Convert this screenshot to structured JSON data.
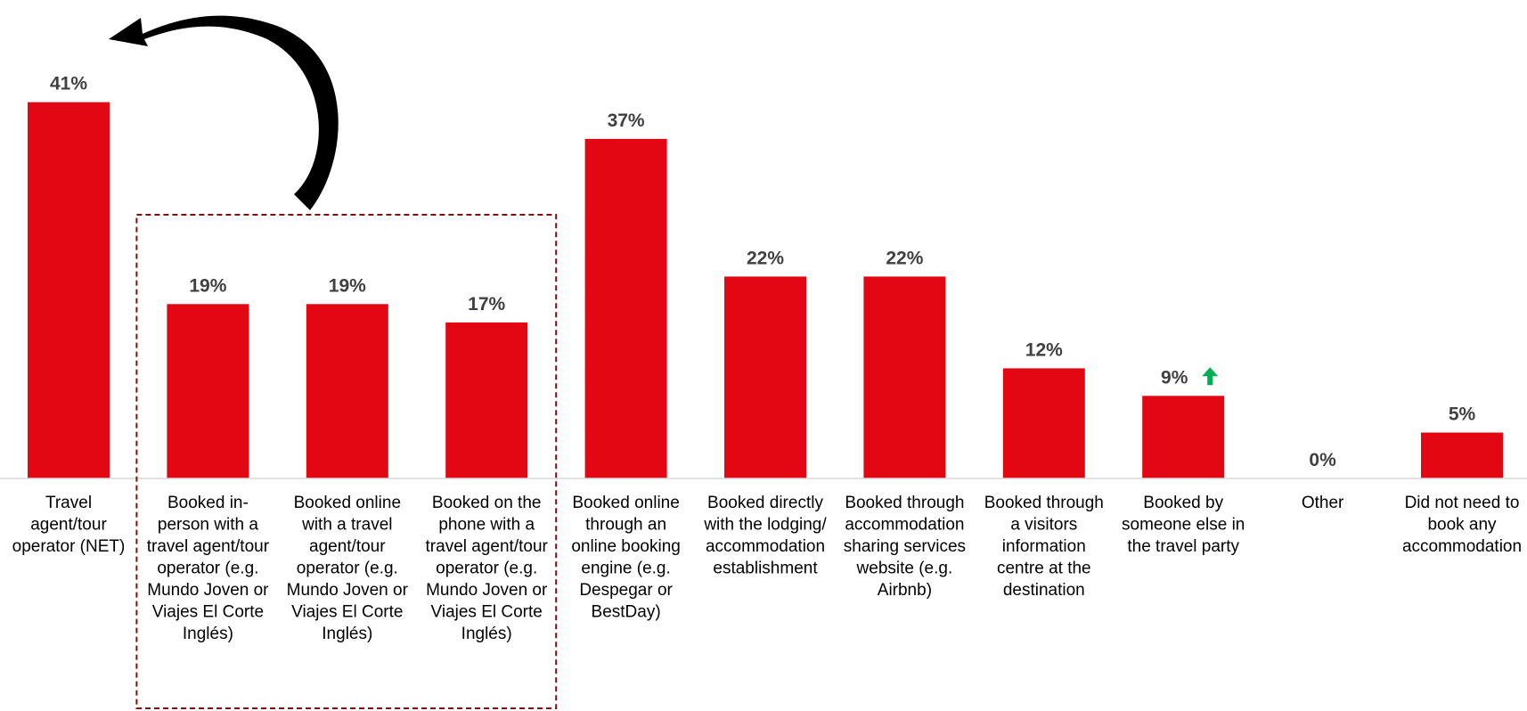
{
  "chart_data": {
    "type": "bar",
    "title": "",
    "xlabel": "",
    "ylabel": "",
    "ylim": [
      0,
      45
    ],
    "grid": false,
    "legend": "none",
    "bar_color": "#e30613",
    "value_label_color": "#404040",
    "highlight_box_color": "#7b1113",
    "up_arrow_color": "#00b050",
    "value_suffix": "%",
    "categories": [
      [
        "Travel",
        "agent/tour",
        "operator (NET)"
      ],
      [
        "Booked in-",
        "person with a",
        "travel agent/tour",
        "operator (e.g.",
        "Mundo Joven or",
        "Viajes El Corte",
        "Inglés)"
      ],
      [
        "Booked online",
        "with a travel",
        "agent/tour",
        "operator (e.g.",
        "Mundo Joven or",
        "Viajes El Corte",
        "Inglés)"
      ],
      [
        "Booked on the",
        "phone with a",
        "travel agent/tour",
        "operator (e.g.",
        "Mundo Joven or",
        "Viajes El Corte",
        "Inglés)"
      ],
      [
        "Booked online",
        "through an",
        "online booking",
        "engine (e.g.",
        "Despegar or",
        "BestDay)"
      ],
      [
        "Booked directly",
        "with the lodging/",
        "accommodation",
        "establishment"
      ],
      [
        "Booked through",
        "accommodation",
        "sharing services",
        "website (e.g.",
        "Airbnb)"
      ],
      [
        "Booked through",
        "a visitors",
        "information",
        "centre at the",
        "destination"
      ],
      [
        "Booked by",
        "someone else in",
        "the travel party"
      ],
      [
        "Other"
      ],
      [
        "Did not need to",
        "book any",
        "accommodation"
      ]
    ],
    "values": [
      41,
      19,
      19,
      17,
      37,
      22,
      22,
      12,
      9,
      0,
      5
    ],
    "value_labels": [
      "41%",
      "19%",
      "19%",
      "17%",
      "37%",
      "22%",
      "22%",
      "12%",
      "9%",
      "0%",
      "5%"
    ],
    "significant_increase": [
      false,
      false,
      false,
      false,
      false,
      false,
      false,
      false,
      true,
      false,
      false
    ],
    "highlight_group": [
      1,
      2,
      3
    ],
    "annotation": "curved arrow from the dashed group of bars to the Travel agent/tour operator (NET) bar"
  }
}
